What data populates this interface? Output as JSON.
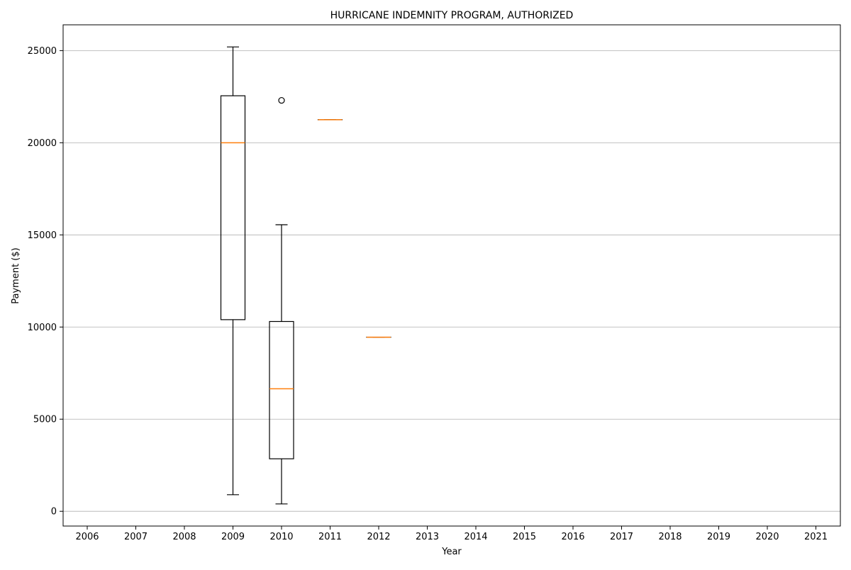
{
  "chart_data": {
    "type": "box",
    "title": "HURRICANE INDEMNITY PROGRAM, AUTHORIZED",
    "xlabel": "Year",
    "ylabel": "Payment ($)",
    "categories": [
      "2006",
      "2007",
      "2008",
      "2009",
      "2010",
      "2011",
      "2012",
      "2013",
      "2014",
      "2015",
      "2016",
      "2017",
      "2018",
      "2019",
      "2020",
      "2021"
    ],
    "ylim": [
      -800,
      26400
    ],
    "yticks": [
      0,
      5000,
      10000,
      15000,
      20000,
      25000
    ],
    "grid": "y",
    "boxes": [
      {
        "category": "2009",
        "whisker_low": 900,
        "q1": 10400,
        "median": 20000,
        "q3": 22550,
        "whisker_high": 25200,
        "outliers": []
      },
      {
        "category": "2010",
        "whisker_low": 400,
        "q1": 2850,
        "median": 6650,
        "q3": 10300,
        "whisker_high": 15550,
        "outliers": [
          22300
        ]
      },
      {
        "category": "2011",
        "whisker_low": 21250,
        "q1": 21250,
        "median": 21250,
        "q3": 21250,
        "whisker_high": 21250,
        "outliers": []
      },
      {
        "category": "2012",
        "whisker_low": 9450,
        "q1": 9450,
        "median": 9450,
        "q3": 9450,
        "whisker_high": 9450,
        "outliers": []
      }
    ],
    "colors": {
      "box": "#000000",
      "median": "#ff7f0e",
      "grid": "#b0b0b0"
    }
  }
}
